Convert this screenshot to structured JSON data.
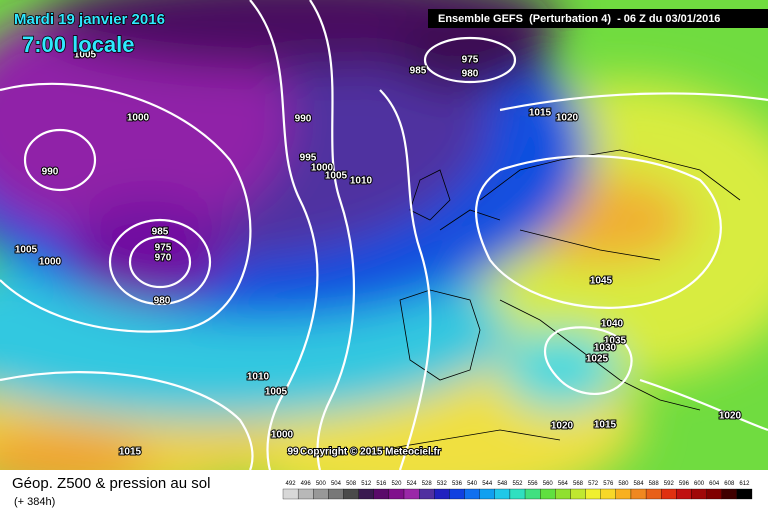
{
  "header": {
    "date": "Mardi 19 janvier 2016",
    "time": "7:00 locale",
    "model": "Ensemble GEFS  (Perturbation 4)  - 06 Z du 03/01/2016"
  },
  "isobar_labels": [
    "975",
    "980",
    "985",
    "1000",
    "990",
    "995",
    "1000",
    "1005",
    "1010",
    "1015",
    "1020",
    "990",
    "985",
    "975",
    "970",
    "980",
    "1005",
    "1000",
    "1045",
    "1040",
    "1035",
    "1030",
    "1025",
    "1010",
    "1005",
    "1000",
    "1015",
    "1020",
    "1015",
    "1020",
    "99",
    "1005"
  ],
  "copyright": "Copyright © 2015 Meteociel.fr",
  "legend": {
    "title": "Géop. Z500 & pression au sol",
    "subtitle": "(+ 384h)"
  },
  "colorbar": {
    "labels": [
      "492",
      "496",
      "500",
      "504",
      "508",
      "512",
      "516",
      "520",
      "524",
      "528",
      "532",
      "536",
      "540",
      "544",
      "548",
      "552",
      "556",
      "560",
      "564",
      "568",
      "572",
      "576",
      "580",
      "584",
      "588",
      "592",
      "596",
      "600",
      "604",
      "608",
      "612"
    ],
    "colors": [
      "#d8d8d8",
      "#b8b8b8",
      "#989898",
      "#787878",
      "#4a4a4a",
      "#3a1a50",
      "#5a0a6a",
      "#80108c",
      "#9a28a8",
      "#5030a0",
      "#2020c0",
      "#1040e0",
      "#1070f0",
      "#10a0f0",
      "#20c8e8",
      "#30e0c0",
      "#40e080",
      "#60e040",
      "#90e030",
      "#c0e830",
      "#f0f030",
      "#f8d828",
      "#f8b020",
      "#f08820",
      "#e86018",
      "#e03010",
      "#c01010",
      "#a00808",
      "#800000",
      "#400000",
      "#000000"
    ]
  }
}
